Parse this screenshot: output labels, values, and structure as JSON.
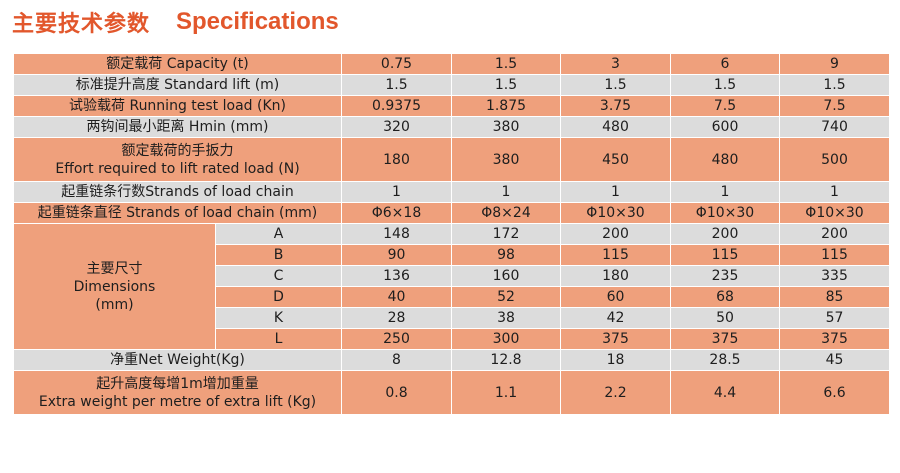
{
  "title": {
    "cn": "主要技术参数",
    "en": "Specifications"
  },
  "colors": {
    "accent": "#e2572c",
    "orange_row": "#efa07c",
    "grey_row": "#dcdcdc"
  },
  "rows": {
    "capacity": {
      "label": "额定载荷  Capacity (t)",
      "values": [
        "0.75",
        "1.5",
        "3",
        "6",
        "9"
      ]
    },
    "standard_lift": {
      "label": "标准提升高度   Standard lift (m)",
      "values": [
        "1.5",
        "1.5",
        "1.5",
        "1.5",
        "1.5"
      ]
    },
    "running_test": {
      "label": "试验载荷  Running test load (Kn)",
      "values": [
        "0.9375",
        "1.875",
        "3.75",
        "7.5",
        "7.5"
      ]
    },
    "hmin": {
      "label": "两钩间最小距离 Hmin  (mm)",
      "values": [
        "320",
        "380",
        "480",
        "600",
        "740"
      ]
    },
    "effort": {
      "label_cn": "额定载荷的手扳力",
      "label_en": "Effort required to lift rated load (N)",
      "values": [
        "180",
        "380",
        "450",
        "480",
        "500"
      ]
    },
    "strands": {
      "label": "起重链条行数Strands of load chain",
      "values": [
        "1",
        "1",
        "1",
        "1",
        "1"
      ]
    },
    "chain_dia": {
      "label": "起重链条直径 Strands of load chain (mm)",
      "values": [
        "Φ6×18",
        "Φ8×24",
        "Φ10×30",
        "Φ10×30",
        "Φ10×30"
      ]
    },
    "dimensions": {
      "label_cn": "主要尺寸",
      "label_en": "Dimensions",
      "label_unit": "(mm)",
      "items": [
        {
          "key": "A",
          "values": [
            "148",
            "172",
            "200",
            "200",
            "200"
          ]
        },
        {
          "key": "B",
          "values": [
            "90",
            "98",
            "115",
            "115",
            "115"
          ]
        },
        {
          "key": "C",
          "values": [
            "136",
            "160",
            "180",
            "235",
            "335"
          ]
        },
        {
          "key": "D",
          "values": [
            "40",
            "52",
            "60",
            "68",
            "85"
          ]
        },
        {
          "key": "K",
          "values": [
            "28",
            "38",
            "42",
            "50",
            "57"
          ]
        },
        {
          "key": "L",
          "values": [
            "250",
            "300",
            "375",
            "375",
            "375"
          ]
        }
      ]
    },
    "net_weight": {
      "label": "净重Net Weight(Kg)",
      "values": [
        "8",
        "12.8",
        "18",
        "28.5",
        "45"
      ]
    },
    "extra_weight": {
      "label_cn": "起升高度每增1m增加重量",
      "label_en": "Extra weight per metre of extra lift (Kg)",
      "values": [
        "0.8",
        "1.1",
        "2.2",
        "4.4",
        "6.6"
      ]
    }
  }
}
